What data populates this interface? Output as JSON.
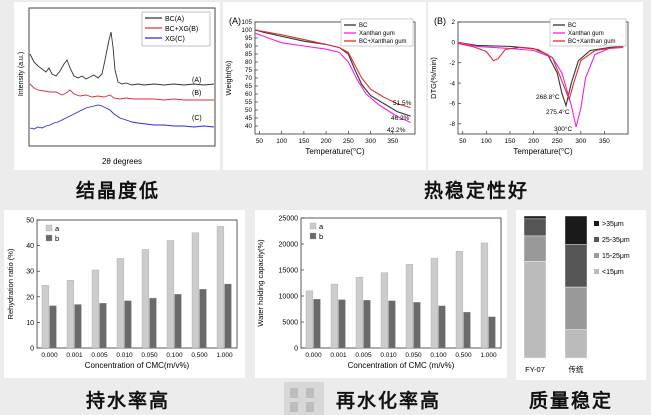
{
  "captions": {
    "crystallinity": "结晶度低",
    "thermal": "热稳定性好",
    "water_holding": "持水率高",
    "rehydration": "再水化率高",
    "quality": "质量稳定"
  },
  "xrd": {
    "ylabel": "Intensity (a.u.)",
    "xlabel": "2θ degrees",
    "legend": [
      "BC(A)",
      "BC+XG(B)",
      "XG(C)"
    ],
    "curve_labels": [
      "(A)",
      "(B)",
      "(C)"
    ],
    "colors": [
      "#333333",
      "#e03030",
      "#2a2ae0"
    ]
  },
  "chart_data": [
    {
      "id": "tga",
      "type": "line",
      "panel_label": "(A)",
      "xlabel": "Temperature(°C)",
      "ylabel": "Weight(%)",
      "xlim": [
        40,
        400
      ],
      "ylim": [
        35,
        105
      ],
      "xticks": [
        50,
        100,
        150,
        200,
        250,
        300,
        350
      ],
      "yticks": [
        40,
        45,
        50,
        55,
        60,
        65,
        70,
        75,
        80,
        85,
        90,
        95,
        100,
        105
      ],
      "series": [
        {
          "name": "BC",
          "color": "#333333",
          "x": [
            40,
            60,
            100,
            150,
            200,
            230,
            250,
            265,
            280,
            300,
            330,
            360,
            390
          ],
          "y": [
            100,
            98.5,
            96,
            93,
            91,
            89,
            85,
            75,
            66,
            59,
            54,
            49,
            46.2
          ]
        },
        {
          "name": "Xanthan gum",
          "color": "#ee22ee",
          "x": [
            40,
            60,
            100,
            150,
            200,
            230,
            250,
            270,
            290,
            320,
            360,
            390
          ],
          "y": [
            98,
            96,
            92,
            90,
            88,
            86,
            80,
            69,
            60,
            53,
            46,
            42.2
          ]
        },
        {
          "name": "BC+Xanthan gum",
          "color": "#e03030",
          "x": [
            40,
            60,
            100,
            150,
            200,
            230,
            250,
            265,
            280,
            300,
            330,
            360,
            390
          ],
          "y": [
            100,
            99,
            97,
            94,
            91,
            89,
            86,
            78,
            70,
            63,
            58,
            54,
            51.5
          ]
        }
      ],
      "annotations": [
        "51.5%",
        "46.2%",
        "42.2%"
      ]
    },
    {
      "id": "dtg",
      "type": "line",
      "panel_label": "(B)",
      "xlabel": "Temperature(°C)",
      "ylabel": "DTG(%/min)",
      "xlim": [
        40,
        400
      ],
      "ylim": [
        -9,
        2
      ],
      "xticks": [
        50,
        100,
        150,
        200,
        250,
        300,
        350
      ],
      "yticks": [
        -8,
        -6,
        -4,
        -2,
        0,
        2
      ],
      "series": [
        {
          "name": "BC",
          "color": "#333333",
          "x": [
            40,
            80,
            150,
            200,
            230,
            250,
            260,
            268.8,
            280,
            295,
            320,
            360,
            390
          ],
          "y": [
            0,
            -0.3,
            -0.4,
            -0.6,
            -1.2,
            -3,
            -5,
            -6.2,
            -4,
            -1.8,
            -0.8,
            -0.5,
            -0.4
          ]
        },
        {
          "name": "Xanthan gum",
          "color": "#ee22ee",
          "x": [
            40,
            80,
            150,
            200,
            240,
            260,
            280,
            290,
            300,
            310,
            330,
            360,
            390
          ],
          "y": [
            0,
            -0.4,
            -0.6,
            -0.8,
            -1.5,
            -3,
            -6.2,
            -8.3,
            -6.5,
            -3.5,
            -1.2,
            -0.6,
            -0.5
          ]
        },
        {
          "name": "BC+Xanthan gum",
          "color": "#e03030",
          "x": [
            40,
            70,
            100,
            115,
            125,
            140,
            170,
            210,
            240,
            260,
            275.4,
            285,
            300,
            330,
            390
          ],
          "y": [
            -0.1,
            -0.4,
            -0.9,
            -1.8,
            -1.6,
            -0.7,
            -0.5,
            -0.7,
            -1.5,
            -3.8,
            -5.6,
            -4,
            -1.8,
            -0.8,
            -0.4
          ]
        }
      ],
      "annotations": [
        "268.8°C",
        "275.4°C",
        "300°C"
      ]
    },
    {
      "id": "rehydration",
      "type": "bar",
      "xlabel": "Concentration of CMC(m/v%)",
      "ylabel": "Rehydration ratio (%)",
      "categories": [
        "0.000",
        "0.001",
        "0.005",
        "0.010",
        "0.050",
        "0.100",
        "0.500",
        "1.000"
      ],
      "ylim": [
        0,
        50
      ],
      "yticks": [
        0,
        10,
        20,
        30,
        40,
        50
      ],
      "series": [
        {
          "name": "a",
          "color": "#cccccc",
          "values": [
            24.5,
            26.5,
            30.5,
            35,
            38.5,
            42,
            45,
            47.5
          ]
        },
        {
          "name": "b",
          "color": "#6a6a6a",
          "values": [
            16.5,
            17,
            17.5,
            18.5,
            19.5,
            21,
            23,
            25
          ]
        }
      ]
    },
    {
      "id": "water_holding",
      "type": "bar",
      "xlabel": "Concentration of CMC (m/v%)",
      "ylabel": "Water holding capacity(%)",
      "categories": [
        "0.000",
        "0.001",
        "0.005",
        "0.010",
        "0.050",
        "0.100",
        "0.500",
        "1.000"
      ],
      "ylim": [
        0,
        25000
      ],
      "yticks": [
        0,
        5000,
        10000,
        15000,
        20000,
        25000
      ],
      "series": [
        {
          "name": "a",
          "color": "#cccccc",
          "values": [
            11000,
            12300,
            13600,
            14500,
            16100,
            17300,
            18600,
            20200
          ]
        },
        {
          "name": "b",
          "color": "#6a6a6a",
          "values": [
            9400,
            9300,
            9200,
            9100,
            8800,
            8100,
            6900,
            6000
          ]
        }
      ]
    },
    {
      "id": "quality",
      "type": "bar",
      "stacked": true,
      "categories": [
        "FY-07",
        "传统"
      ],
      "legend": [
        ">35μm",
        "25-35μm",
        "15-25μm",
        "<15μm"
      ],
      "colors": [
        "#1a1a1a",
        "#555555",
        "#999999",
        "#bbbbbb"
      ],
      "series": [
        {
          "name": "<15μm",
          "values": [
            68,
            20
          ]
        },
        {
          "name": "15-25μm",
          "values": [
            18,
            30
          ]
        },
        {
          "name": "25-35μm",
          "values": [
            12,
            30
          ]
        },
        {
          "name": ">35μm",
          "values": [
            2,
            20
          ]
        }
      ]
    }
  ]
}
